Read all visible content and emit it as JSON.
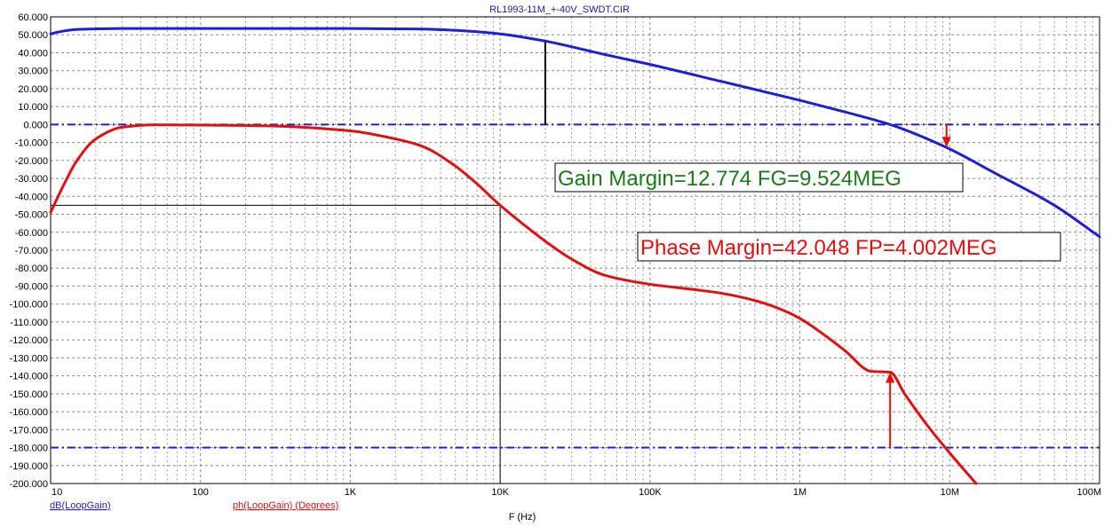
{
  "chart_data": {
    "type": "line",
    "title": "RL1993-11M_+-40V_SWDT.CIR",
    "xlabel": "F (Hz)",
    "xscale": "log",
    "xlim": [
      10,
      100000000
    ],
    "ylim": [
      -200,
      60
    ],
    "x_ticks": [
      10,
      100,
      1000,
      10000,
      100000,
      1000000,
      10000000,
      100000000
    ],
    "x_tick_labels": [
      "10",
      "100",
      "1K",
      "10K",
      "100K",
      "1M",
      "10M",
      "100M"
    ],
    "y_ticks": [
      60,
      50,
      40,
      30,
      20,
      10,
      0,
      -10,
      -20,
      -30,
      -40,
      -50,
      -60,
      -70,
      -80,
      -90,
      -100,
      -110,
      -120,
      -130,
      -140,
      -150,
      -160,
      -170,
      -180,
      -190,
      -200
    ],
    "y_tick_labels": [
      "60.000",
      "50.000",
      "40.000",
      "30.000",
      "20.000",
      "10.000",
      "0.000",
      "-10.000",
      "-20.000",
      "-30.000",
      "-40.000",
      "-50.000",
      "-60.000",
      "-70.000",
      "-80.000",
      "-90.000",
      "-100.000",
      "-110.000",
      "-120.000",
      "-130.000",
      "-140.000",
      "-150.000",
      "-160.000",
      "-170.000",
      "-180.000",
      "-190.000",
      "-200.000"
    ],
    "grid": true,
    "series": [
      {
        "name": "dB(LoopGain)",
        "color": "#1f1fd2",
        "x": [
          10,
          12,
          15,
          20,
          30,
          50,
          100,
          300,
          1000,
          3000,
          5000,
          10000,
          20000,
          50000,
          100000,
          300000,
          1000000,
          2000000,
          4000000,
          9524000,
          20000000,
          50000000,
          100000000
        ],
        "y": [
          50.5,
          52,
          53,
          53.3,
          53.5,
          53.5,
          53.5,
          53.5,
          53.5,
          53.2,
          52.5,
          50.5,
          46.5,
          39,
          33.5,
          24,
          13.5,
          7,
          0,
          -12.774,
          -27,
          -45,
          -62.5
        ]
      },
      {
        "name": "ph(LoopGain) (Degrees)",
        "color": "#e01010",
        "x": [
          10,
          12,
          15,
          20,
          30,
          50,
          100,
          300,
          1000,
          2000,
          3000,
          5000,
          7000,
          10000,
          15000,
          20000,
          30000,
          50000,
          100000,
          200000,
          300000,
          500000,
          700000,
          1000000,
          1500000,
          2000000,
          3000000,
          4002000,
          5000000,
          7000000,
          10000000,
          15000000
        ],
        "y": [
          -49,
          -35,
          -20,
          -8,
          -1.5,
          -0.2,
          -0.3,
          -0.8,
          -3.5,
          -8,
          -12,
          -23,
          -33,
          -45,
          -57,
          -65,
          -75,
          -84,
          -89,
          -92,
          -94,
          -98,
          -102,
          -108,
          -118,
          -126,
          -137.5,
          -137.952,
          -150,
          -167,
          -183,
          -200
        ]
      }
    ],
    "reference_lines": [
      {
        "y": 0,
        "color": "#1f1fd2",
        "style": "dash-dot"
      },
      {
        "y": -180,
        "color": "#1f1fd2",
        "style": "dash-dot"
      }
    ],
    "markers": {
      "gain_cursor": {
        "x": 20000,
        "y_from": 0,
        "y_to": 46.5,
        "color": "#000000"
      },
      "phase_cursor": {
        "x": 10000,
        "y_level": -45,
        "color": "#000000"
      },
      "gain_arrow": {
        "x": 9524000,
        "y_from": 0,
        "y_to": -12.774,
        "color": "#e01010"
      },
      "phase_arrow": {
        "x": 4002000,
        "y_from": -180,
        "y_to": -137.952,
        "color": "#e01010"
      }
    },
    "annotations": [
      {
        "text": "Gain Margin=12.774 FG=9.524MEG",
        "color": "#1a7a1a"
      },
      {
        "text": "Phase Margin=42.048 FP=4.002MEG",
        "color": "#e01010"
      }
    ]
  }
}
